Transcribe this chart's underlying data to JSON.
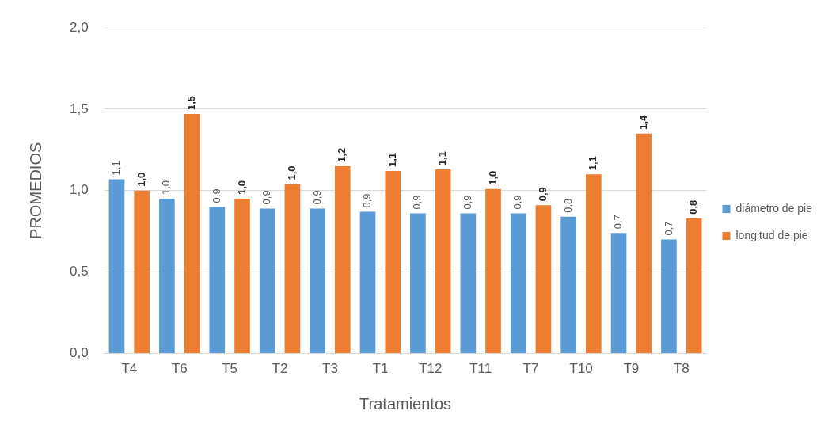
{
  "chart_data": {
    "type": "bar",
    "xlabel": "Tratamientos",
    "ylabel": "PROMEDIOS",
    "categories": [
      "T4",
      "T6",
      "T5",
      "T2",
      "T3",
      "T1",
      "T12",
      "T11",
      "T7",
      "T10",
      "T9",
      "T8"
    ],
    "series": [
      {
        "name": "diámetro de pie",
        "color": "#5b9bd5",
        "values": [
          1.07,
          0.95,
          0.9,
          0.89,
          0.89,
          0.87,
          0.86,
          0.86,
          0.86,
          0.84,
          0.74,
          0.7
        ],
        "value_labels": [
          "1,1",
          "1,0",
          "0,9",
          "0,9",
          "0,9",
          "0,9",
          "0,9",
          "0,9",
          "0,9",
          "0,8",
          "0,7",
          "0,7"
        ]
      },
      {
        "name": "longitud de pie",
        "color": "#ed7d31",
        "values": [
          1.0,
          1.47,
          0.95,
          1.04,
          1.15,
          1.12,
          1.13,
          1.01,
          0.91,
          1.1,
          1.35,
          0.83
        ],
        "value_labels": [
          "1,0",
          "1,5",
          "1,0",
          "1,0",
          "1,2",
          "1,1",
          "1,1",
          "1,0",
          "0,9",
          "1,1",
          "1,4",
          "0,8"
        ]
      }
    ],
    "ylim": [
      0,
      2
    ],
    "yticks": [
      {
        "value": 0,
        "label": "0,0"
      },
      {
        "value": 0.5,
        "label": "0,5"
      },
      {
        "value": 1,
        "label": "1,0"
      },
      {
        "value": 1.5,
        "label": "1,5"
      },
      {
        "value": 2,
        "label": "2,0"
      }
    ],
    "grid": "y",
    "legend": "right"
  }
}
